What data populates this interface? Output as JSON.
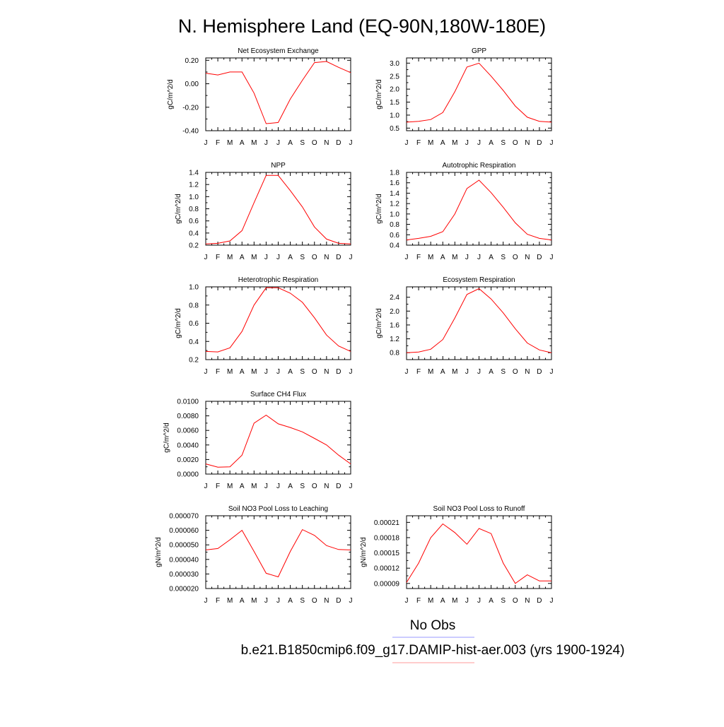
{
  "title": "N. Hemisphere Land (EQ-90N,180W-180E)",
  "legend": {
    "items": [
      {
        "label": "No Obs",
        "color": "#9999ff"
      },
      {
        "label": "b.e21.B1850cmip6.f09_g17.DAMIP-hist-aer.003 (yrs 1900-1924)",
        "color": "#ff9999"
      }
    ]
  },
  "colors": {
    "line": "#ff0000",
    "axis": "#000000"
  },
  "months": [
    "J",
    "F",
    "M",
    "A",
    "M",
    "J",
    "J",
    "A",
    "S",
    "O",
    "N",
    "D",
    "J"
  ],
  "chart_data": [
    {
      "type": "line",
      "title": "Net Ecosystem Exchange",
      "ylabel": "gC/m^2/d",
      "ylim": [
        -0.4,
        0.22
      ],
      "yticks": [
        -0.4,
        -0.2,
        0.0,
        0.2
      ],
      "ytick_labels": [
        "-0.40",
        "-0.20",
        "0.00",
        "0.20"
      ],
      "series": [
        {
          "values": [
            0.09,
            0.075,
            0.1,
            0.1,
            -0.08,
            -0.34,
            -0.33,
            -0.13,
            0.03,
            0.18,
            0.19,
            0.14,
            0.095
          ]
        }
      ]
    },
    {
      "type": "line",
      "title": "GPP",
      "ylabel": "gC/m^2/d",
      "ylim": [
        0.4,
        3.2
      ],
      "yticks": [
        0.5,
        1.0,
        1.5,
        2.0,
        2.5,
        3.0
      ],
      "ytick_labels": [
        "0.5",
        "1.0",
        "1.5",
        "2.0",
        "2.5",
        "3.0"
      ],
      "series": [
        {
          "values": [
            0.73,
            0.76,
            0.83,
            1.1,
            1.9,
            2.85,
            3.0,
            2.5,
            1.95,
            1.35,
            0.92,
            0.76,
            0.73
          ]
        }
      ]
    },
    {
      "type": "line",
      "title": "NPP",
      "ylabel": "gC/m^2/d",
      "ylim": [
        0.2,
        1.4
      ],
      "yticks": [
        0.2,
        0.4,
        0.6,
        0.8,
        1.0,
        1.2,
        1.4
      ],
      "ytick_labels": [
        "0.2",
        "0.4",
        "0.6",
        "0.8",
        "1.0",
        "1.2",
        "1.4"
      ],
      "series": [
        {
          "values": [
            0.22,
            0.23,
            0.27,
            0.44,
            0.9,
            1.35,
            1.35,
            1.1,
            0.83,
            0.5,
            0.3,
            0.23,
            0.22
          ]
        }
      ]
    },
    {
      "type": "line",
      "title": "Autotrophic Respiration",
      "ylabel": "gC/m^2/d",
      "ylim": [
        0.4,
        1.8
      ],
      "yticks": [
        0.4,
        0.6,
        0.8,
        1.0,
        1.2,
        1.4,
        1.6,
        1.8
      ],
      "ytick_labels": [
        "0.4",
        "0.6",
        "0.8",
        "1.0",
        "1.2",
        "1.4",
        "1.6",
        "1.8"
      ],
      "series": [
        {
          "values": [
            0.5,
            0.53,
            0.57,
            0.66,
            1.0,
            1.49,
            1.65,
            1.41,
            1.13,
            0.83,
            0.61,
            0.53,
            0.5
          ]
        }
      ]
    },
    {
      "type": "line",
      "title": "Heterotrophic Respiration",
      "ylabel": "gC/m^2/d",
      "ylim": [
        0.2,
        1.0
      ],
      "yticks": [
        0.2,
        0.4,
        0.6,
        0.8,
        1.0
      ],
      "ytick_labels": [
        "0.2",
        "0.4",
        "0.6",
        "0.8",
        "1.0"
      ],
      "series": [
        {
          "values": [
            0.29,
            0.285,
            0.33,
            0.51,
            0.8,
            0.99,
            0.99,
            0.93,
            0.83,
            0.66,
            0.47,
            0.35,
            0.29
          ]
        }
      ]
    },
    {
      "type": "line",
      "title": "Ecosystem Respiration",
      "ylabel": "gC/m^2/d",
      "ylim": [
        0.6,
        2.7
      ],
      "yticks": [
        0.8,
        1.2,
        1.6,
        2.0,
        2.4
      ],
      "ytick_labels": [
        "0.8",
        "1.2",
        "1.6",
        "2.0",
        "2.4"
      ],
      "series": [
        {
          "values": [
            0.8,
            0.82,
            0.9,
            1.18,
            1.8,
            2.48,
            2.65,
            2.35,
            1.95,
            1.49,
            1.08,
            0.88,
            0.8
          ]
        }
      ]
    },
    {
      "type": "line",
      "title": "Surface CH4 Flux",
      "ylabel": "gC/m^2/d",
      "ylim": [
        0.0,
        0.01
      ],
      "yticks": [
        0.0,
        0.002,
        0.004,
        0.006,
        0.008,
        0.01
      ],
      "ytick_labels": [
        "0.0000",
        "0.0020",
        "0.0040",
        "0.0060",
        "0.0080",
        "0.0100"
      ],
      "series": [
        {
          "values": [
            0.0014,
            0.00095,
            0.001,
            0.0026,
            0.007,
            0.0081,
            0.0069,
            0.0064,
            0.0058,
            0.0049,
            0.004,
            0.0026,
            0.0014
          ]
        }
      ]
    },
    {
      "type": "line",
      "title": "Soil NO3 Pool Loss to Leaching",
      "ylabel": "gN/m^2/d",
      "ylim": [
        2e-05,
        7e-05
      ],
      "yticks": [
        2e-05,
        3e-05,
        4e-05,
        5e-05,
        6e-05,
        7e-05
      ],
      "ytick_labels": [
        "0.000020",
        "0.000030",
        "0.000040",
        "0.000050",
        "0.000060",
        "0.000070"
      ],
      "series": [
        {
          "values": [
            4.65e-05,
            4.75e-05,
            5.35e-05,
            6e-05,
            4.55e-05,
            3.05e-05,
            2.8e-05,
            4.55e-05,
            6.05e-05,
            5.65e-05,
            4.95e-05,
            4.68e-05,
            4.65e-05
          ]
        }
      ]
    },
    {
      "type": "line",
      "title": "Soil NO3 Pool Loss to Runoff",
      "ylabel": "gN/m^2/d",
      "ylim": [
        8e-05,
        0.000223
      ],
      "yticks": [
        9e-05,
        0.00012,
        0.00015,
        0.00018,
        0.00021
      ],
      "ytick_labels": [
        "0.00009",
        "0.00012",
        "0.00015",
        "0.00018",
        "0.00021"
      ],
      "series": [
        {
          "values": [
            9.2e-05,
            0.00013,
            0.00018,
            0.000207,
            0.00019,
            0.000167,
            0.000198,
            0.000188,
            0.00013,
            9e-05,
            0.000107,
            9.5e-05,
            9.5e-05
          ]
        }
      ]
    }
  ]
}
